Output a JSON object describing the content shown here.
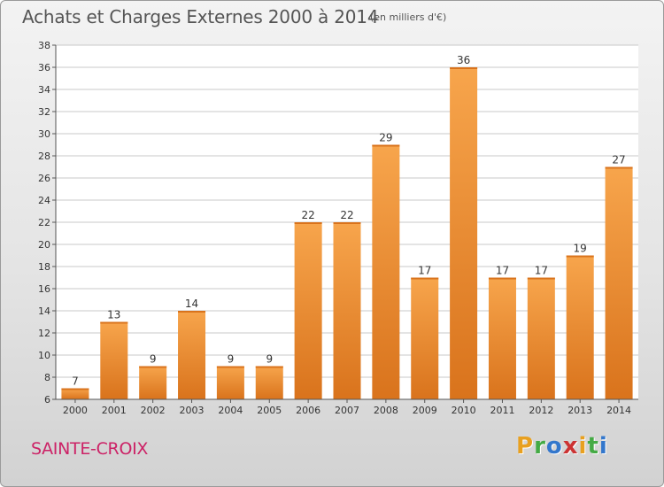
{
  "header": {
    "title": "Achats et Charges Externes 2000 à 2014",
    "unit": "(en milliers d'€)"
  },
  "footer": {
    "commune": "SAINTE-CROIX",
    "logo": "Proxiti"
  },
  "colors": {
    "bar_light": "#f7a54c",
    "bar_dark": "#d9731c",
    "axis": "#555555",
    "grid": "#c8c8c8",
    "commune": "#cc2266",
    "logo": [
      "#e8a020",
      "#44aa44",
      "#3377cc",
      "#cc3333",
      "#e8a020",
      "#44aa44",
      "#3377cc"
    ]
  },
  "chart_data": {
    "type": "bar",
    "title": "Achats et Charges Externes 2000 à 2014",
    "subtitle": "(en milliers d'€)",
    "xlabel": "",
    "ylabel": "",
    "categories": [
      "2000",
      "2001",
      "2002",
      "2003",
      "2004",
      "2005",
      "2006",
      "2007",
      "2008",
      "2009",
      "2010",
      "2011",
      "2012",
      "2013",
      "2014"
    ],
    "values": [
      7,
      13,
      9,
      14,
      9,
      9,
      22,
      22,
      29,
      17,
      36,
      17,
      17,
      19,
      27
    ],
    "ylim": [
      6,
      38
    ],
    "yticks": [
      6,
      8,
      10,
      12,
      14,
      16,
      18,
      20,
      22,
      24,
      26,
      28,
      30,
      32,
      34,
      36,
      38
    ],
    "grid": true,
    "legend": "none"
  }
}
